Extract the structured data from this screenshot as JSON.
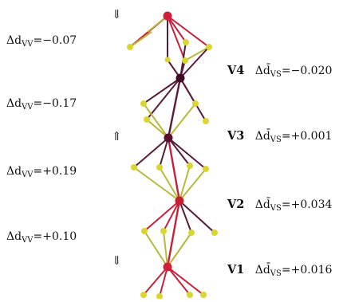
{
  "colors": {
    "background": "#ffffff",
    "sulfur": "#d9d632",
    "vanadium_dark": "#4a0f2a",
    "vanadium_red": "#d0203a",
    "bond_red": "#c8203a",
    "bond_dark": "#5a1a3a",
    "bond_yellow": "#b8b83a"
  },
  "atoms": [
    {
      "name": "V4",
      "label": "V4",
      "delta_vs": "Δd̄VS=−0.020"
    },
    {
      "name": "V3",
      "label": "V3",
      "delta_vs": "Δd̄VS=+0.001"
    },
    {
      "name": "V2",
      "label": "V2",
      "delta_vs": "Δd̄VS=+0.034"
    },
    {
      "name": "V1",
      "label": "V1",
      "delta_vs": "Δd̄VS=+0.016"
    }
  ],
  "vv_labels": [
    {
      "prefix": "Δd",
      "sub": "VV",
      "value": "=−0.07"
    },
    {
      "prefix": "Δd",
      "sub": "VV",
      "value": "=−0.17"
    },
    {
      "prefix": "Δd",
      "sub": "VV",
      "value": "=+0.19"
    },
    {
      "prefix": "Δd",
      "sub": "VV",
      "value": "=+0.10"
    }
  ],
  "vs_labels": [
    {
      "prefix": "Δd̄",
      "sub": "VS",
      "value": "=−0.020"
    },
    {
      "prefix": "Δd̄",
      "sub": "VS",
      "value": "=+0.001"
    },
    {
      "prefix": "Δd̄",
      "sub": "VS",
      "value": "=+0.034"
    },
    {
      "prefix": "Δd̄",
      "sub": "VS",
      "value": "=+0.016"
    }
  ],
  "spin_arrows": [
    "⇓",
    "⇑",
    "⇓"
  ]
}
